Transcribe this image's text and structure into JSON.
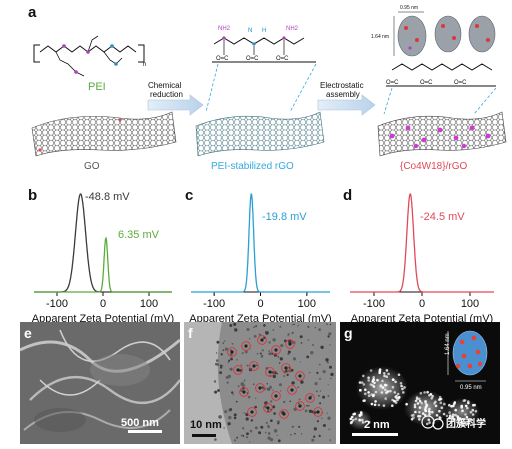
{
  "panel_a": {
    "letter": "a",
    "pei_label": "PEI",
    "pei_subscript": "n",
    "go_label": "GO",
    "step1_label_line1": "Chemical",
    "step1_label_line2": "reduction",
    "step2_label_line1": "Electrostatic",
    "step2_label_line2": "assembly",
    "rgo_label": "PEI-stabilized rGO",
    "composite_label": "{Co4W18}/rGO",
    "dim_095": "0.95 nm",
    "dim_164": "1.64 nm",
    "atom_n": "N",
    "atom_h": "H",
    "nh2": "NH2",
    "carbonyl": "O=C",
    "colors": {
      "pei_green": "#5aac3c",
      "pei_n_purple": "#b13fbd",
      "pei_n_blue": "#2a8fc8",
      "arrow_blue": "#cfe0ef",
      "rgo_label": "#34a9dc",
      "composite_label": "#e04a58",
      "go_gray": "#555555"
    }
  },
  "chart_data": [
    {
      "type": "line",
      "panel": "b",
      "xlabel": "Apparent Zeta Potential (mV)",
      "ylabel": "",
      "xlim": [
        -150,
        150
      ],
      "xticks": [
        -100,
        0,
        100
      ],
      "series": [
        {
          "name": "-48.8 mV",
          "peak": -48.8,
          "width": 11,
          "height": 1.0,
          "color": "#3a3a3a"
        },
        {
          "name": "6.35 mV",
          "peak": 6.35,
          "width": 4,
          "height": 0.55,
          "color": "#5aac3c"
        }
      ]
    },
    {
      "type": "line",
      "panel": "c",
      "xlabel": "Apparent Zeta Potential (mV)",
      "ylabel": "",
      "xlim": [
        -150,
        150
      ],
      "xticks": [
        -100,
        0,
        100
      ],
      "series": [
        {
          "name": "-19.8 mV",
          "peak": -19.8,
          "width": 5,
          "height": 1.0,
          "color": "#2a9fd6"
        }
      ]
    },
    {
      "type": "line",
      "panel": "d",
      "xlabel": "Apparent Zeta Potential (mV)",
      "ylabel": "",
      "xlim": [
        -150,
        150
      ],
      "xticks": [
        -100,
        0,
        100
      ],
      "series": [
        {
          "name": "-24.5 mV",
          "peak": -24.5,
          "width": 7,
          "height": 1.0,
          "color": "#e04a58"
        }
      ]
    }
  ],
  "panel_e": {
    "letter": "e",
    "scale": "500 nm"
  },
  "panel_f": {
    "letter": "f",
    "scale": "10 nm"
  },
  "panel_g": {
    "letter": "g",
    "scale": "2 nm",
    "inset_dim_164": "1.64 nm",
    "inset_dim_095": "0.95 nm",
    "watermark": "团簇科学"
  }
}
